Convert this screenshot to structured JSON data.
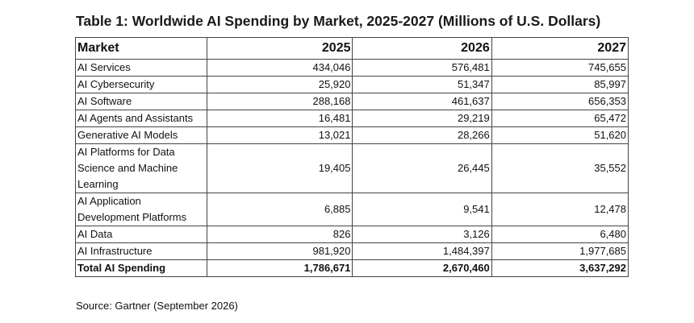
{
  "title": "Table 1: Worldwide AI Spending by Market, 2025-2027 (Millions of U.S. Dollars)",
  "table": {
    "header": [
      "Market",
      "2025",
      "2026",
      "2027"
    ],
    "rows": [
      [
        "AI Services",
        "434,046",
        "576,481",
        "745,655"
      ],
      [
        "AI Cybersecurity",
        "25,920",
        "51,347",
        "85,997"
      ],
      [
        "AI Software",
        "288,168",
        "461,637",
        "656,353"
      ],
      [
        "AI Agents and Assistants",
        "16,481",
        "29,219",
        "65,472"
      ],
      [
        "Generative AI Models",
        "13,021",
        "28,266",
        "51,620"
      ],
      [
        "AI Platforms for Data Science and Machine Learning",
        "19,405",
        "26,445",
        "35,552"
      ],
      [
        "AI Application Development Platforms",
        "6,885",
        "9,541",
        "12,478"
      ],
      [
        "AI Data",
        "826",
        "3,126",
        "6,480"
      ],
      [
        "AI Infrastructure",
        "981,920",
        "1,484,397",
        "1,977,685"
      ]
    ],
    "total": [
      "Total AI Spending",
      "1,786,671",
      "2,670,460",
      "3,637,292"
    ]
  },
  "source": "Source: Gartner (September 2026)"
}
